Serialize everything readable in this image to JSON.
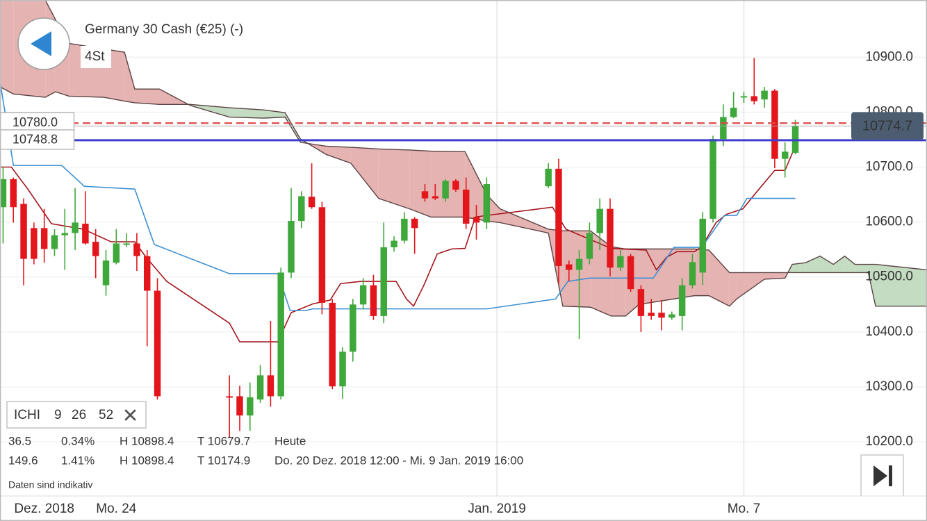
{
  "chart_data": {
    "type": "candlestick",
    "title": "Germany 30 Cash (€25) (-)",
    "subtitle": "4St",
    "categories": [
      null,
      null,
      null,
      null,
      "Dez. 2018",
      null,
      null,
      null,
      null,
      null,
      null,
      "Mo. 24",
      null,
      null,
      null,
      null,
      null,
      null,
      null,
      null,
      null,
      null,
      null,
      null,
      null,
      null,
      null,
      null,
      null,
      null,
      null,
      null,
      null,
      null,
      null,
      null,
      null,
      null,
      null,
      null,
      null,
      null,
      null,
      null,
      null,
      null,
      null,
      null,
      "Jan. 2019",
      null,
      null,
      null,
      null,
      null,
      null,
      null,
      null,
      null,
      null,
      null,
      null,
      null,
      null,
      null,
      null,
      null,
      null,
      null,
      null,
      null,
      null,
      null,
      "Mo. 7",
      null,
      null,
      null,
      null,
      null
    ],
    "open": [
      10627,
      10678,
      10633,
      10589,
      10589,
      10551,
      10576,
      10580,
      10597,
      10564,
      10485,
      10526,
      10559,
      10561,
      10538,
      10475,
      null,
      null,
      null,
      null,
      null,
      null,
      10283,
      10283,
      10248,
      10277,
      10321,
      10283,
      10508,
      10602,
      10646,
      10627,
      10453,
      10301,
      10364,
      10450,
      10485,
      10429,
      10554,
      10566,
      10606,
      10656,
      10647,
      10643,
      10675,
      10659,
      10609,
      10599,
      null,
      null,
      null,
      null,
      null,
      10665,
      10697,
      10523,
      10513,
      10533,
      10580,
      10624,
      10517,
      10538,
      10478,
      10435,
      10435,
      10426,
      10429,
      10485,
      10508,
      10606,
      10751,
      10791,
      10827,
      10829,
      10823,
      10839,
      10715,
      10726
    ],
    "high": [
      10700,
      10681,
      10643,
      10599,
      10624,
      10587,
      10624,
      10662,
      10656,
      10587,
      10549,
      10587,
      10580,
      10580,
      10549,
      10498,
      null,
      null,
      null,
      null,
      null,
      null,
      10321,
      10302,
      10308,
      10340,
      10420,
      10517,
      10662,
      10656,
      10707,
      10637,
      10460,
      10372,
      10460,
      10498,
      10504,
      10599,
      10574,
      10618,
      10609,
      10669,
      10669,
      10678,
      10678,
      10681,
      10631,
      10681,
      null,
      null,
      null,
      null,
      null,
      10707,
      10715,
      10530,
      10549,
      10599,
      10643,
      10643,
      10549,
      10542,
      10485,
      10460,
      10458,
      10437,
      10498,
      10542,
      10618,
      10757,
      10814,
      10837,
      10837,
      10898.4,
      10846,
      10842,
      10745,
      10786
    ],
    "low": [
      10561,
      10599,
      10485,
      10523,
      10526,
      10538,
      10513,
      10549,
      10559,
      10498,
      10466,
      10523,
      10555,
      10511,
      10374,
      10277,
      null,
      null,
      null,
      null,
      null,
      null,
      10207,
      10220,
      10220,
      10271,
      10264,
      10277,
      10498,
      10589,
      10624,
      10432,
      10296,
      10278,
      10346,
      10441,
      10422,
      10416,
      10546,
      10561,
      10542,
      10637,
      10640,
      10637,
      10655,
      10587,
      10568,
      10587,
      null,
      null,
      null,
      null,
      null,
      10662,
      10488,
      10492,
      10387,
      10523,
      10549,
      10501,
      10511,
      10473,
      10400,
      10422,
      10403,
      10422,
      10403,
      10479,
      10485,
      10599,
      10738,
      10789,
      10817,
      10814,
      10808,
      10698,
      10681,
      10723
    ],
    "close": [
      10678,
      10627,
      10533,
      10533,
      10551,
      10576,
      10580,
      10599,
      10561,
      10538,
      10530,
      10561,
      10561,
      10538,
      10475,
      10283,
      null,
      null,
      null,
      null,
      null,
      null,
      10281,
      10248,
      10281,
      10321,
      10283,
      10508,
      10602,
      10647,
      10627,
      10453,
      10301,
      10364,
      10450,
      10485,
      10429,
      10554,
      10566,
      10606,
      10589,
      10643,
      10643,
      10675,
      10659,
      10597,
      10599,
      10669,
      null,
      null,
      null,
      null,
      null,
      10697,
      10520,
      10513,
      10533,
      10580,
      10624,
      10517,
      10538,
      10478,
      10429,
      10429,
      10426,
      10432,
      10485,
      10527,
      10606,
      10751,
      10791,
      10808,
      10829,
      10820,
      10839,
      10715,
      10728,
      10774.7
    ],
    "up_color": "#3ea83a",
    "down_color": "#e3161c",
    "lines": [
      {
        "color": "#a3161c",
        "x": [
          -0.3,
          0.8,
          2.4,
          4.7,
          7.8,
          10.5,
          12.8,
          13.9,
          15.9,
          22.0,
          23.0,
          26.7,
          28.0,
          30.1,
          31.8,
          32.8,
          34.8,
          38.2,
          39.2,
          39.9,
          40.9,
          42.2,
          43.6,
          44.9,
          45.9,
          47.0,
          53.4,
          54.7,
          59.1,
          62.5,
          63.5,
          64.5,
          65.5,
          67.2,
          67.9,
          69.3,
          70.3,
          71.9,
          73.3,
          75.0,
          76.0,
          77.0
        ],
        "values": [
          10700,
          10700,
          10660,
          10597,
          10587,
          10564,
          10564,
          10536,
          10492,
          10416,
          10382,
          10382,
          10435,
          10451,
          10458,
          10488,
          10492,
          10492,
          10460,
          10447,
          10485,
          10542,
          10551,
          10552,
          10609,
          10612,
          10627,
          10587,
          10552,
          10549,
          10513,
          10536,
          10546,
          10546,
          10555,
          10599,
          10614,
          10624,
          10656,
          10694,
          10694,
          10738
        ]
      },
      {
        "color": "#3b8fd3",
        "x": [
          -0.3,
          1.0,
          5.7,
          7.9,
          12.8,
          14.7,
          22.0,
          26.7,
          27.9,
          29.4,
          30.1,
          47.0,
          53.7,
          54.9,
          57.0,
          63.2,
          65.2,
          67.9,
          70.1,
          71.3,
          72.3,
          77.0
        ],
        "values": [
          10857,
          10703,
          10703,
          10665,
          10660,
          10559,
          10506,
          10506,
          10439,
          10439,
          10442,
          10442,
          10460,
          10492,
          10498,
          10498,
          10554,
          10554,
          10612,
          10612,
          10643,
          10643
        ]
      }
    ],
    "cloud": {
      "x": [
        -0.3,
        1.0,
        4.1,
        5.1,
        6.4,
        9.8,
        11.8,
        12.8,
        15.2,
        18.2,
        22.0,
        25.3,
        27.4,
        28.9,
        31.4,
        33.8,
        36.5,
        39.5,
        41.6,
        44.9,
        47.0,
        48.3,
        53.0,
        54.4,
        57.1,
        59.1,
        60.5,
        61.8,
        67.2,
        68.6,
        70.6,
        71.3,
        74.0,
        76.0,
        76.7,
        78.0,
        79.4,
        80.7,
        81.8,
        82.8,
        84.1,
        84.8,
        89.8
      ],
      "b": [
        11042,
        11042,
        11004,
        10968,
        10925,
        10915,
        10909,
        10842,
        10842,
        10812,
        10791,
        10789,
        10791,
        10745,
        10738,
        10736,
        10733,
        10731,
        10729,
        10728,
        10650,
        10624,
        10587,
        10584,
        10584,
        10555,
        10551,
        10551,
        10551,
        10549,
        10508,
        10508,
        10508,
        10508,
        10508,
        10508,
        10508,
        10508,
        10508,
        10508,
        10508,
        10447,
        10447
      ],
      "a": [
        10846,
        10833,
        10827,
        10837,
        10829,
        10827,
        10820,
        10817,
        10814,
        10814,
        10808,
        10804,
        10799,
        10751,
        10723,
        10707,
        10643,
        10624,
        10609,
        10609,
        10602,
        10599,
        10580,
        10447,
        10445,
        10429,
        10429,
        10450,
        10466,
        10466,
        10447,
        10460,
        10496,
        10498,
        10523,
        10526,
        10538,
        10523,
        10538,
        10523,
        10523,
        10523,
        10513
      ],
      "bear_color": "#e6b3b3",
      "bull_color": "#c3dcc2",
      "edge_color": "#5b4343"
    },
    "levels": [
      {
        "value": 10780,
        "label": "10780.0",
        "color": "#e04848",
        "dash": true
      },
      {
        "value": 10748.8,
        "label": "10748.8",
        "color": "#3d3dcf",
        "dash": false
      }
    ],
    "xlim": [
      -0.3,
      89.8
    ],
    "ylim": [
      10056,
      11004
    ],
    "yticks": [
      {
        "value": 10200,
        "label": "10200.0"
      },
      {
        "value": 10300,
        "label": "10300.0"
      },
      {
        "value": 10400,
        "label": "10400.0"
      },
      {
        "value": 10500,
        "label": "10500.0"
      },
      {
        "value": 10600,
        "label": "10600.0"
      },
      {
        "value": 10700,
        "label": "10700.0"
      },
      {
        "value": 10800,
        "label": "10800.0"
      },
      {
        "value": 10900,
        "label": "10900.0"
      }
    ],
    "grid": true
  },
  "indicator": {
    "name": "ICHI",
    "params": [
      9,
      26,
      52
    ]
  },
  "stats": [
    {
      "change": 36.5,
      "percent": "0.34%",
      "high": "H 10898.4",
      "low": "T 10679.7",
      "period": "Heute"
    },
    {
      "change": 149.6,
      "percent": "1.41%",
      "high": "H 10898.4",
      "low": "T 10174.9",
      "period": "Do. 20 Dez. 2018 12:00 - Mi. 9 Jan. 2019 16:00"
    }
  ],
  "footnote": "Daten sind indikativ"
}
